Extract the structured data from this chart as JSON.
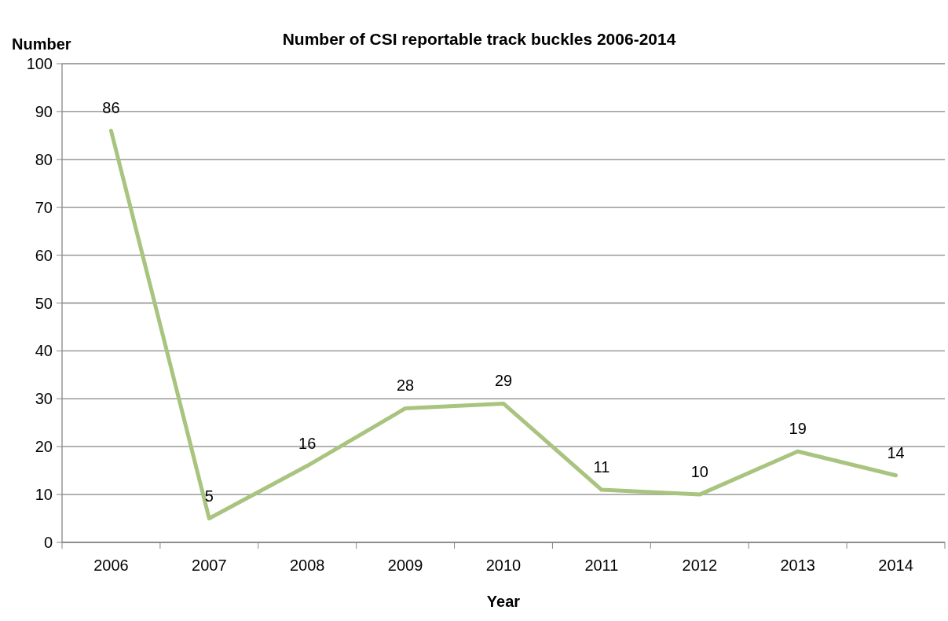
{
  "chart_data": {
    "type": "line",
    "title": "Number of CSI reportable track buckles 2006-2014",
    "xlabel": "Year",
    "ylabel": "Number",
    "categories": [
      "2006",
      "2007",
      "2008",
      "2009",
      "2010",
      "2011",
      "2012",
      "2013",
      "2014"
    ],
    "series": [
      {
        "color": "#a9c47f",
        "values": [
          86,
          5,
          16,
          28,
          29,
          11,
          10,
          19,
          14
        ]
      }
    ],
    "ylim": [
      0,
      100
    ],
    "yticks": [
      0,
      10,
      20,
      30,
      40,
      50,
      60,
      70,
      80,
      90,
      100
    ],
    "grid": "y",
    "data_labels": true,
    "marker": "none",
    "line_style": "solid"
  }
}
